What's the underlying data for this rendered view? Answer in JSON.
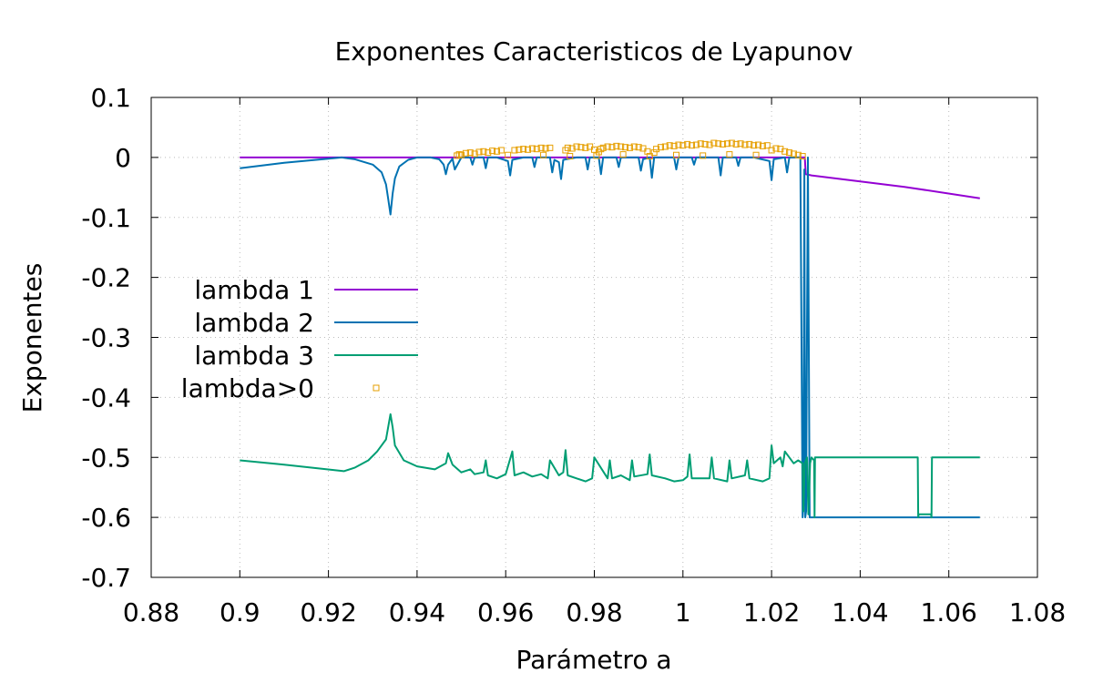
{
  "chart_data": {
    "type": "line",
    "title": "Exponentes Caracteristicos de Lyapunov",
    "xlabel": "Parámetro a",
    "ylabel": "Exponentes",
    "xlim": [
      0.88,
      1.08
    ],
    "ylim": [
      -0.7,
      0.1
    ],
    "xticks": [
      "0.88",
      "0.9",
      "0.92",
      "0.94",
      "0.96",
      "0.98",
      "1",
      "1.02",
      "1.04",
      "1.06",
      "1.08"
    ],
    "yticks": [
      "0.1",
      "0",
      "-0.1",
      "-0.2",
      "-0.3",
      "-0.4",
      "-0.5",
      "-0.6",
      "-0.7"
    ],
    "grid": true,
    "legend_position": "left-center",
    "colors": {
      "lambda1": "#9400d3",
      "lambda2": "#0072b2",
      "lambda3": "#009e73",
      "positive": "#e69f00"
    },
    "series": [
      {
        "name": "lambda 1",
        "style": "line",
        "x": [
          0.9,
          0.92,
          0.94,
          0.948,
          0.96,
          0.98,
          1.0,
          1.02,
          1.0275,
          1.0277,
          1.029,
          1.05,
          1.067
        ],
        "y": [
          0.0,
          0.0,
          0.0,
          0.0,
          0.0,
          0.0,
          0.0,
          0.0,
          0.0,
          -0.028,
          -0.03,
          -0.049,
          -0.068
        ]
      },
      {
        "name": "lambda 2",
        "style": "line",
        "x": [
          0.9,
          0.91,
          0.92,
          0.923,
          0.926,
          0.93,
          0.932,
          0.933,
          0.9335,
          0.934,
          0.9345,
          0.935,
          0.936,
          0.938,
          0.94,
          0.943,
          0.945,
          0.946,
          0.9465,
          0.947,
          0.948,
          0.9485,
          0.95,
          0.952,
          0.9525,
          0.953,
          0.955,
          0.9555,
          0.956,
          0.958,
          0.9605,
          0.961,
          0.9615,
          0.964,
          0.966,
          0.9665,
          0.967,
          0.97,
          0.9705,
          0.971,
          0.972,
          0.9725,
          0.973,
          0.976,
          0.978,
          0.9785,
          0.979,
          0.981,
          0.9815,
          0.982,
          0.985,
          0.9855,
          0.986,
          0.99,
          0.9905,
          0.991,
          0.9925,
          0.993,
          0.9935,
          0.996,
          0.998,
          0.9985,
          0.999,
          1.002,
          1.0025,
          1.003,
          1.006,
          1.008,
          1.0085,
          1.009,
          1.012,
          1.0125,
          1.013,
          1.016,
          1.0195,
          1.02,
          1.0205,
          1.023,
          1.0235,
          1.024,
          1.0265,
          1.027,
          1.0272,
          1.0274,
          1.0276,
          1.0278,
          1.0282,
          1.0286,
          1.029,
          1.03,
          1.04,
          1.05,
          1.06,
          1.067
        ],
        "y": [
          -0.018,
          -0.009,
          -0.002,
          0.0,
          -0.003,
          -0.012,
          -0.025,
          -0.045,
          -0.07,
          -0.095,
          -0.06,
          -0.035,
          -0.015,
          -0.004,
          0.0,
          0.0,
          -0.003,
          -0.012,
          -0.028,
          -0.012,
          -0.002,
          -0.02,
          0.0,
          0.0,
          -0.012,
          0.0,
          0.0,
          -0.018,
          0.0,
          0.0,
          -0.006,
          -0.03,
          -0.004,
          0.0,
          0.0,
          -0.016,
          0.0,
          0.0,
          -0.025,
          -0.004,
          -0.008,
          -0.036,
          -0.004,
          0.0,
          0.0,
          -0.02,
          0.0,
          0.0,
          -0.028,
          0.0,
          0.0,
          -0.016,
          0.0,
          0.0,
          -0.022,
          -0.003,
          0.0,
          -0.034,
          0.0,
          0.0,
          0.0,
          -0.02,
          0.0,
          0.0,
          -0.012,
          0.0,
          0.0,
          0.0,
          -0.03,
          0.0,
          0.0,
          -0.014,
          0.0,
          0.0,
          -0.006,
          -0.038,
          -0.003,
          0.0,
          -0.025,
          0.0,
          0.0,
          -0.6,
          -0.58,
          -0.02,
          -0.6,
          -0.59,
          0.0,
          -0.6,
          -0.6,
          -0.6,
          -0.6,
          -0.6,
          -0.6,
          -0.6
        ]
      },
      {
        "name": "lambda 3",
        "style": "line",
        "x": [
          0.9,
          0.91,
          0.9235,
          0.926,
          0.929,
          0.931,
          0.933,
          0.9337,
          0.934,
          0.9345,
          0.935,
          0.937,
          0.94,
          0.944,
          0.9465,
          0.947,
          0.948,
          0.95,
          0.952,
          0.953,
          0.955,
          0.9555,
          0.956,
          0.958,
          0.96,
          0.9615,
          0.962,
          0.964,
          0.966,
          0.968,
          0.9695,
          0.97,
          0.972,
          0.973,
          0.9735,
          0.974,
          0.976,
          0.978,
          0.9795,
          0.98,
          0.983,
          0.9835,
          0.984,
          0.986,
          0.988,
          0.9885,
          0.989,
          0.992,
          0.9925,
          0.993,
          0.996,
          0.998,
          1.0,
          1.001,
          1.0015,
          1.002,
          1.006,
          1.0065,
          1.007,
          1.01,
          1.0105,
          1.011,
          1.014,
          1.0145,
          1.015,
          1.018,
          1.0195,
          1.02,
          1.0205,
          1.022,
          1.0225,
          1.023,
          1.025,
          1.026,
          1.027,
          1.0272,
          1.0275,
          1.028,
          1.0283,
          1.0287,
          1.029,
          1.0296,
          1.0297,
          1.0298,
          1.04,
          1.053,
          1.0531,
          1.0532,
          1.056,
          1.0561,
          1.0562,
          1.067
        ],
        "y": [
          -0.505,
          -0.512,
          -0.523,
          -0.517,
          -0.505,
          -0.49,
          -0.47,
          -0.44,
          -0.428,
          -0.45,
          -0.48,
          -0.505,
          -0.515,
          -0.52,
          -0.51,
          -0.493,
          -0.512,
          -0.525,
          -0.52,
          -0.528,
          -0.525,
          -0.505,
          -0.53,
          -0.535,
          -0.528,
          -0.49,
          -0.53,
          -0.525,
          -0.532,
          -0.528,
          -0.535,
          -0.505,
          -0.53,
          -0.525,
          -0.488,
          -0.53,
          -0.535,
          -0.54,
          -0.535,
          -0.5,
          -0.535,
          -0.505,
          -0.535,
          -0.53,
          -0.538,
          -0.505,
          -0.532,
          -0.528,
          -0.495,
          -0.53,
          -0.535,
          -0.54,
          -0.538,
          -0.532,
          -0.495,
          -0.535,
          -0.535,
          -0.5,
          -0.535,
          -0.54,
          -0.505,
          -0.535,
          -0.53,
          -0.505,
          -0.535,
          -0.54,
          -0.535,
          -0.48,
          -0.51,
          -0.5,
          -0.515,
          -0.49,
          -0.51,
          -0.505,
          -0.51,
          -0.59,
          -0.51,
          -0.5,
          -0.595,
          -0.51,
          -0.5,
          -0.505,
          -0.6,
          -0.5,
          -0.5,
          -0.5,
          -0.6,
          -0.595,
          -0.595,
          -0.6,
          -0.5,
          -0.5
        ]
      },
      {
        "name": "lambda>0",
        "style": "points",
        "x": [
          0.949,
          0.9495,
          0.95,
          0.951,
          0.952,
          0.953,
          0.954,
          0.955,
          0.956,
          0.957,
          0.958,
          0.959,
          0.9605,
          0.962,
          0.963,
          0.964,
          0.965,
          0.966,
          0.967,
          0.968,
          0.969,
          0.97,
          0.9735,
          0.974,
          0.975,
          0.976,
          0.977,
          0.978,
          0.979,
          0.98,
          0.981,
          0.9815,
          0.982,
          0.983,
          0.984,
          0.985,
          0.986,
          0.987,
          0.988,
          0.989,
          0.99,
          0.991,
          0.992,
          0.9935,
          0.994,
          0.995,
          0.996,
          0.997,
          0.998,
          0.999,
          1.0,
          1.001,
          1.002,
          1.003,
          1.004,
          1.005,
          1.006,
          1.007,
          1.008,
          1.009,
          1.01,
          1.011,
          1.012,
          1.013,
          1.014,
          1.015,
          1.016,
          1.017,
          1.018,
          1.019,
          1.02,
          1.021,
          1.022,
          1.023,
          1.024,
          1.025,
          1.026,
          1.027,
          0.9685,
          0.9745,
          0.9805,
          0.9865,
          0.9925,
          0.9985,
          1.0045,
          1.0105,
          1.0165
        ],
        "y": [
          0.003,
          0.005,
          0.004,
          0.007,
          0.008,
          0.006,
          0.009,
          0.01,
          0.008,
          0.011,
          0.01,
          0.012,
          0.004,
          0.012,
          0.013,
          0.014,
          0.013,
          0.015,
          0.014,
          0.016,
          0.015,
          0.016,
          0.012,
          0.016,
          0.015,
          0.018,
          0.017,
          0.016,
          0.018,
          0.013,
          0.009,
          0.014,
          0.016,
          0.018,
          0.017,
          0.019,
          0.018,
          0.017,
          0.016,
          0.018,
          0.017,
          0.015,
          0.01,
          0.008,
          0.014,
          0.017,
          0.018,
          0.02,
          0.019,
          0.021,
          0.02,
          0.022,
          0.02,
          0.021,
          0.023,
          0.022,
          0.021,
          0.024,
          0.023,
          0.022,
          0.023,
          0.024,
          0.022,
          0.023,
          0.021,
          0.022,
          0.02,
          0.021,
          0.019,
          0.02,
          0.012,
          0.015,
          0.014,
          0.01,
          0.008,
          0.006,
          0.004,
          0.002,
          0.004,
          0.002,
          0.003,
          0.005,
          0.002,
          0.004,
          0.003,
          0.005,
          0.004
        ]
      }
    ]
  }
}
